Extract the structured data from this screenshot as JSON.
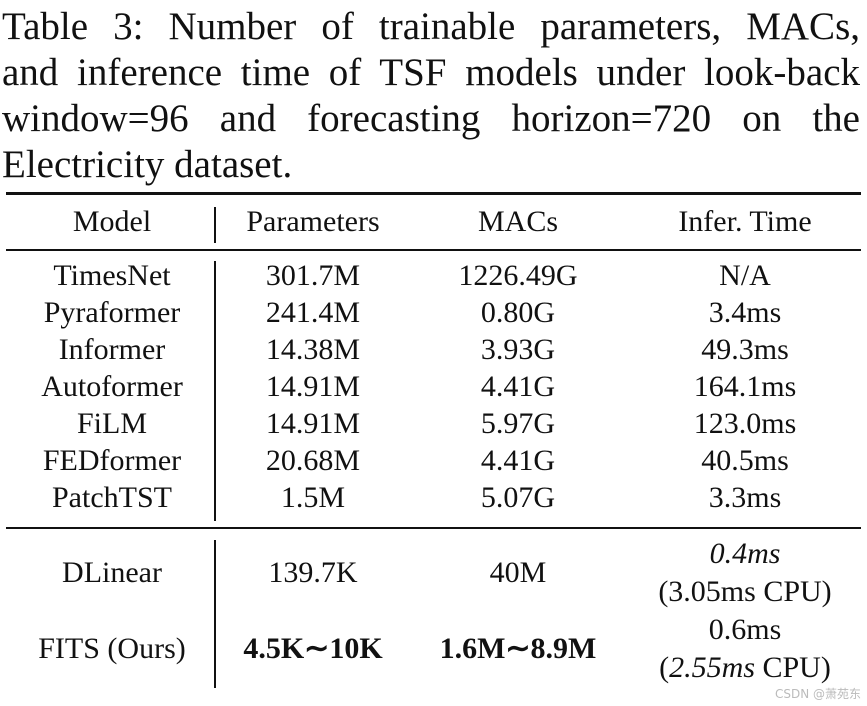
{
  "caption": [
    "Table 3: Number of trainable parameters, MACs,",
    "and inference time of TSF models under look-back",
    "window=96 and forecasting horizon=720 on the",
    "Electricity dataset."
  ],
  "table": {
    "header": [
      "Model",
      "Parameters",
      "MACs",
      "Infer. Time"
    ],
    "groups": [
      [
        [
          "TimesNet",
          "301.7M",
          "1226.49G",
          "N/A"
        ],
        [
          "Pyraformer",
          "241.4M",
          "0.80G",
          "3.4ms"
        ],
        [
          "Informer",
          "14.38M",
          "3.93G",
          "49.3ms"
        ],
        [
          "Autoformer",
          "14.91M",
          "4.41G",
          "164.1ms"
        ],
        [
          "FiLM",
          "14.91M",
          "5.97G",
          "123.0ms"
        ],
        [
          "FEDformer",
          "20.68M",
          "4.41G",
          "40.5ms"
        ],
        [
          "PatchTST",
          "1.5M",
          "5.07G",
          "3.3ms"
        ]
      ],
      [
        [
          "DLinear",
          "139.7K",
          "40M",
          [
            [
              {
                "text": "0.4ms",
                "italic": true
              }
            ],
            [
              "(3.05ms CPU)"
            ]
          ]
        ],
        [
          "FITS (Ours)",
          {
            "text": "4.5K∼10K",
            "bold": true
          },
          {
            "text": "1.6M∼8.9M",
            "bold": true
          },
          [
            [
              "0.6ms"
            ],
            [
              "(",
              {
                "text": "2.55ms",
                "italic": true
              },
              " CPU)"
            ]
          ]
        ]
      ]
    ]
  },
  "watermark": "CSDN @萧苑东"
}
